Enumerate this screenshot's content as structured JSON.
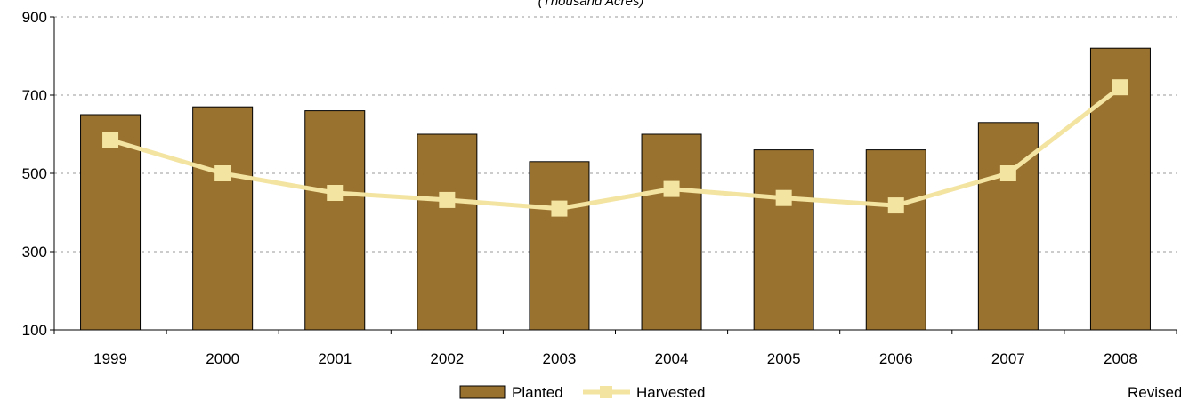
{
  "chart_data": {
    "type": "bar",
    "subtitle": "(Thousand Acres)",
    "categories": [
      "1999",
      "2000",
      "2001",
      "2002",
      "2003",
      "2004",
      "2005",
      "2006",
      "2007",
      "2008"
    ],
    "series": [
      {
        "name": "Planted",
        "type": "bar",
        "color": "#9a7230",
        "values": [
          650,
          670,
          660,
          600,
          530,
          600,
          560,
          560,
          630,
          820
        ]
      },
      {
        "name": "Harvested",
        "type": "line",
        "color": "#f3e4a2",
        "values": [
          585,
          500,
          450,
          432,
          410,
          460,
          437,
          418,
          500,
          720
        ]
      }
    ],
    "y_ticks": [
      "100",
      "300",
      "500",
      "700",
      "900"
    ],
    "ylim": [
      100,
      900
    ],
    "grid": "horizontal-dotted",
    "legend_position": "bottom"
  },
  "footer": {
    "note": "Revised"
  }
}
